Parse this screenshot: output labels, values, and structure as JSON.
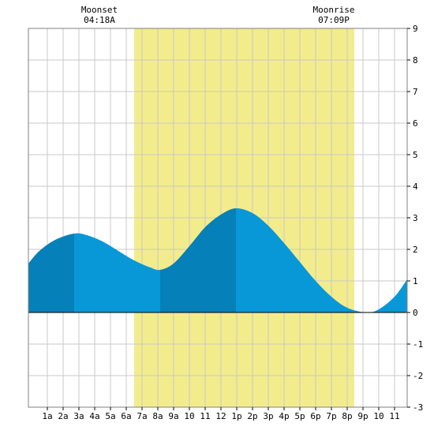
{
  "chart_data": {
    "type": "area",
    "title": "",
    "xlabel": "",
    "ylabel": "",
    "x_unit": "hour of day",
    "xlim": [
      -0.2,
      23.8
    ],
    "ylim": [
      -3,
      9
    ],
    "grid": true,
    "x_ticks": [
      {
        "hour": 1,
        "label": "1a"
      },
      {
        "hour": 2,
        "label": "2a"
      },
      {
        "hour": 3,
        "label": "3a"
      },
      {
        "hour": 4,
        "label": "4a"
      },
      {
        "hour": 5,
        "label": "5a"
      },
      {
        "hour": 6,
        "label": "6a"
      },
      {
        "hour": 7,
        "label": "7a"
      },
      {
        "hour": 8,
        "label": "8a"
      },
      {
        "hour": 9,
        "label": "9a"
      },
      {
        "hour": 10,
        "label": "10"
      },
      {
        "hour": 11,
        "label": "11"
      },
      {
        "hour": 12,
        "label": "12"
      },
      {
        "hour": 13,
        "label": "1p"
      },
      {
        "hour": 14,
        "label": "2p"
      },
      {
        "hour": 15,
        "label": "3p"
      },
      {
        "hour": 16,
        "label": "4p"
      },
      {
        "hour": 17,
        "label": "5p"
      },
      {
        "hour": 18,
        "label": "6p"
      },
      {
        "hour": 19,
        "label": "7p"
      },
      {
        "hour": 20,
        "label": "8p"
      },
      {
        "hour": 21,
        "label": "9p"
      },
      {
        "hour": 22,
        "label": "10"
      },
      {
        "hour": 23,
        "label": "11"
      }
    ],
    "y_ticks": [
      "-3",
      "-2",
      "-1",
      "0",
      "1",
      "2",
      "3",
      "4",
      "5",
      "6",
      "7",
      "8",
      "9"
    ],
    "daylight": {
      "start_hour": 6.5,
      "end_hour": 20.45,
      "color": "#f3ec8c"
    },
    "moon_events": [
      {
        "name": "Moonset",
        "time": "04:18A",
        "hour": 4.3
      },
      {
        "name": "Moonrise",
        "time": "07:09P",
        "hour": 19.15
      }
    ],
    "tide_extremes": [
      {
        "type": "high",
        "hour": 2.7,
        "height": 2.5
      },
      {
        "type": "low",
        "hour": 8.15,
        "height": 1.35
      },
      {
        "type": "high",
        "hour": 12.95,
        "height": 3.3
      },
      {
        "type": "low",
        "hour": 21.2,
        "height": 0.0
      }
    ],
    "series": [
      {
        "x": [
          -0.2,
          0.5,
          1.5,
          2.7,
          3.5,
          4.5,
          5.5,
          6.5,
          7.5,
          8.15,
          9.0,
          10.0,
          11.0,
          12.0,
          12.95,
          14.0,
          15.0,
          16.0,
          17.0,
          18.0,
          19.0,
          20.0,
          21.2,
          22.0,
          23.0,
          23.8
        ],
        "y": [
          1.55,
          1.95,
          2.3,
          2.5,
          2.45,
          2.25,
          1.95,
          1.65,
          1.43,
          1.35,
          1.55,
          2.1,
          2.7,
          3.1,
          3.3,
          3.15,
          2.75,
          2.2,
          1.6,
          1.0,
          0.5,
          0.15,
          0.0,
          0.1,
          0.5,
          1.05
        ]
      }
    ],
    "shade_bands": [
      {
        "start_hour": -0.2,
        "end_hour": 2.7
      },
      {
        "start_hour": 8.15,
        "end_hour": 12.95
      }
    ],
    "colors": {
      "fill": "#0898d8",
      "fill_dark": "#0680b8",
      "grid": "#c8c8c8",
      "frame": "#808080",
      "zero_line": "#000000",
      "daylight": "#f3ec8c"
    }
  }
}
